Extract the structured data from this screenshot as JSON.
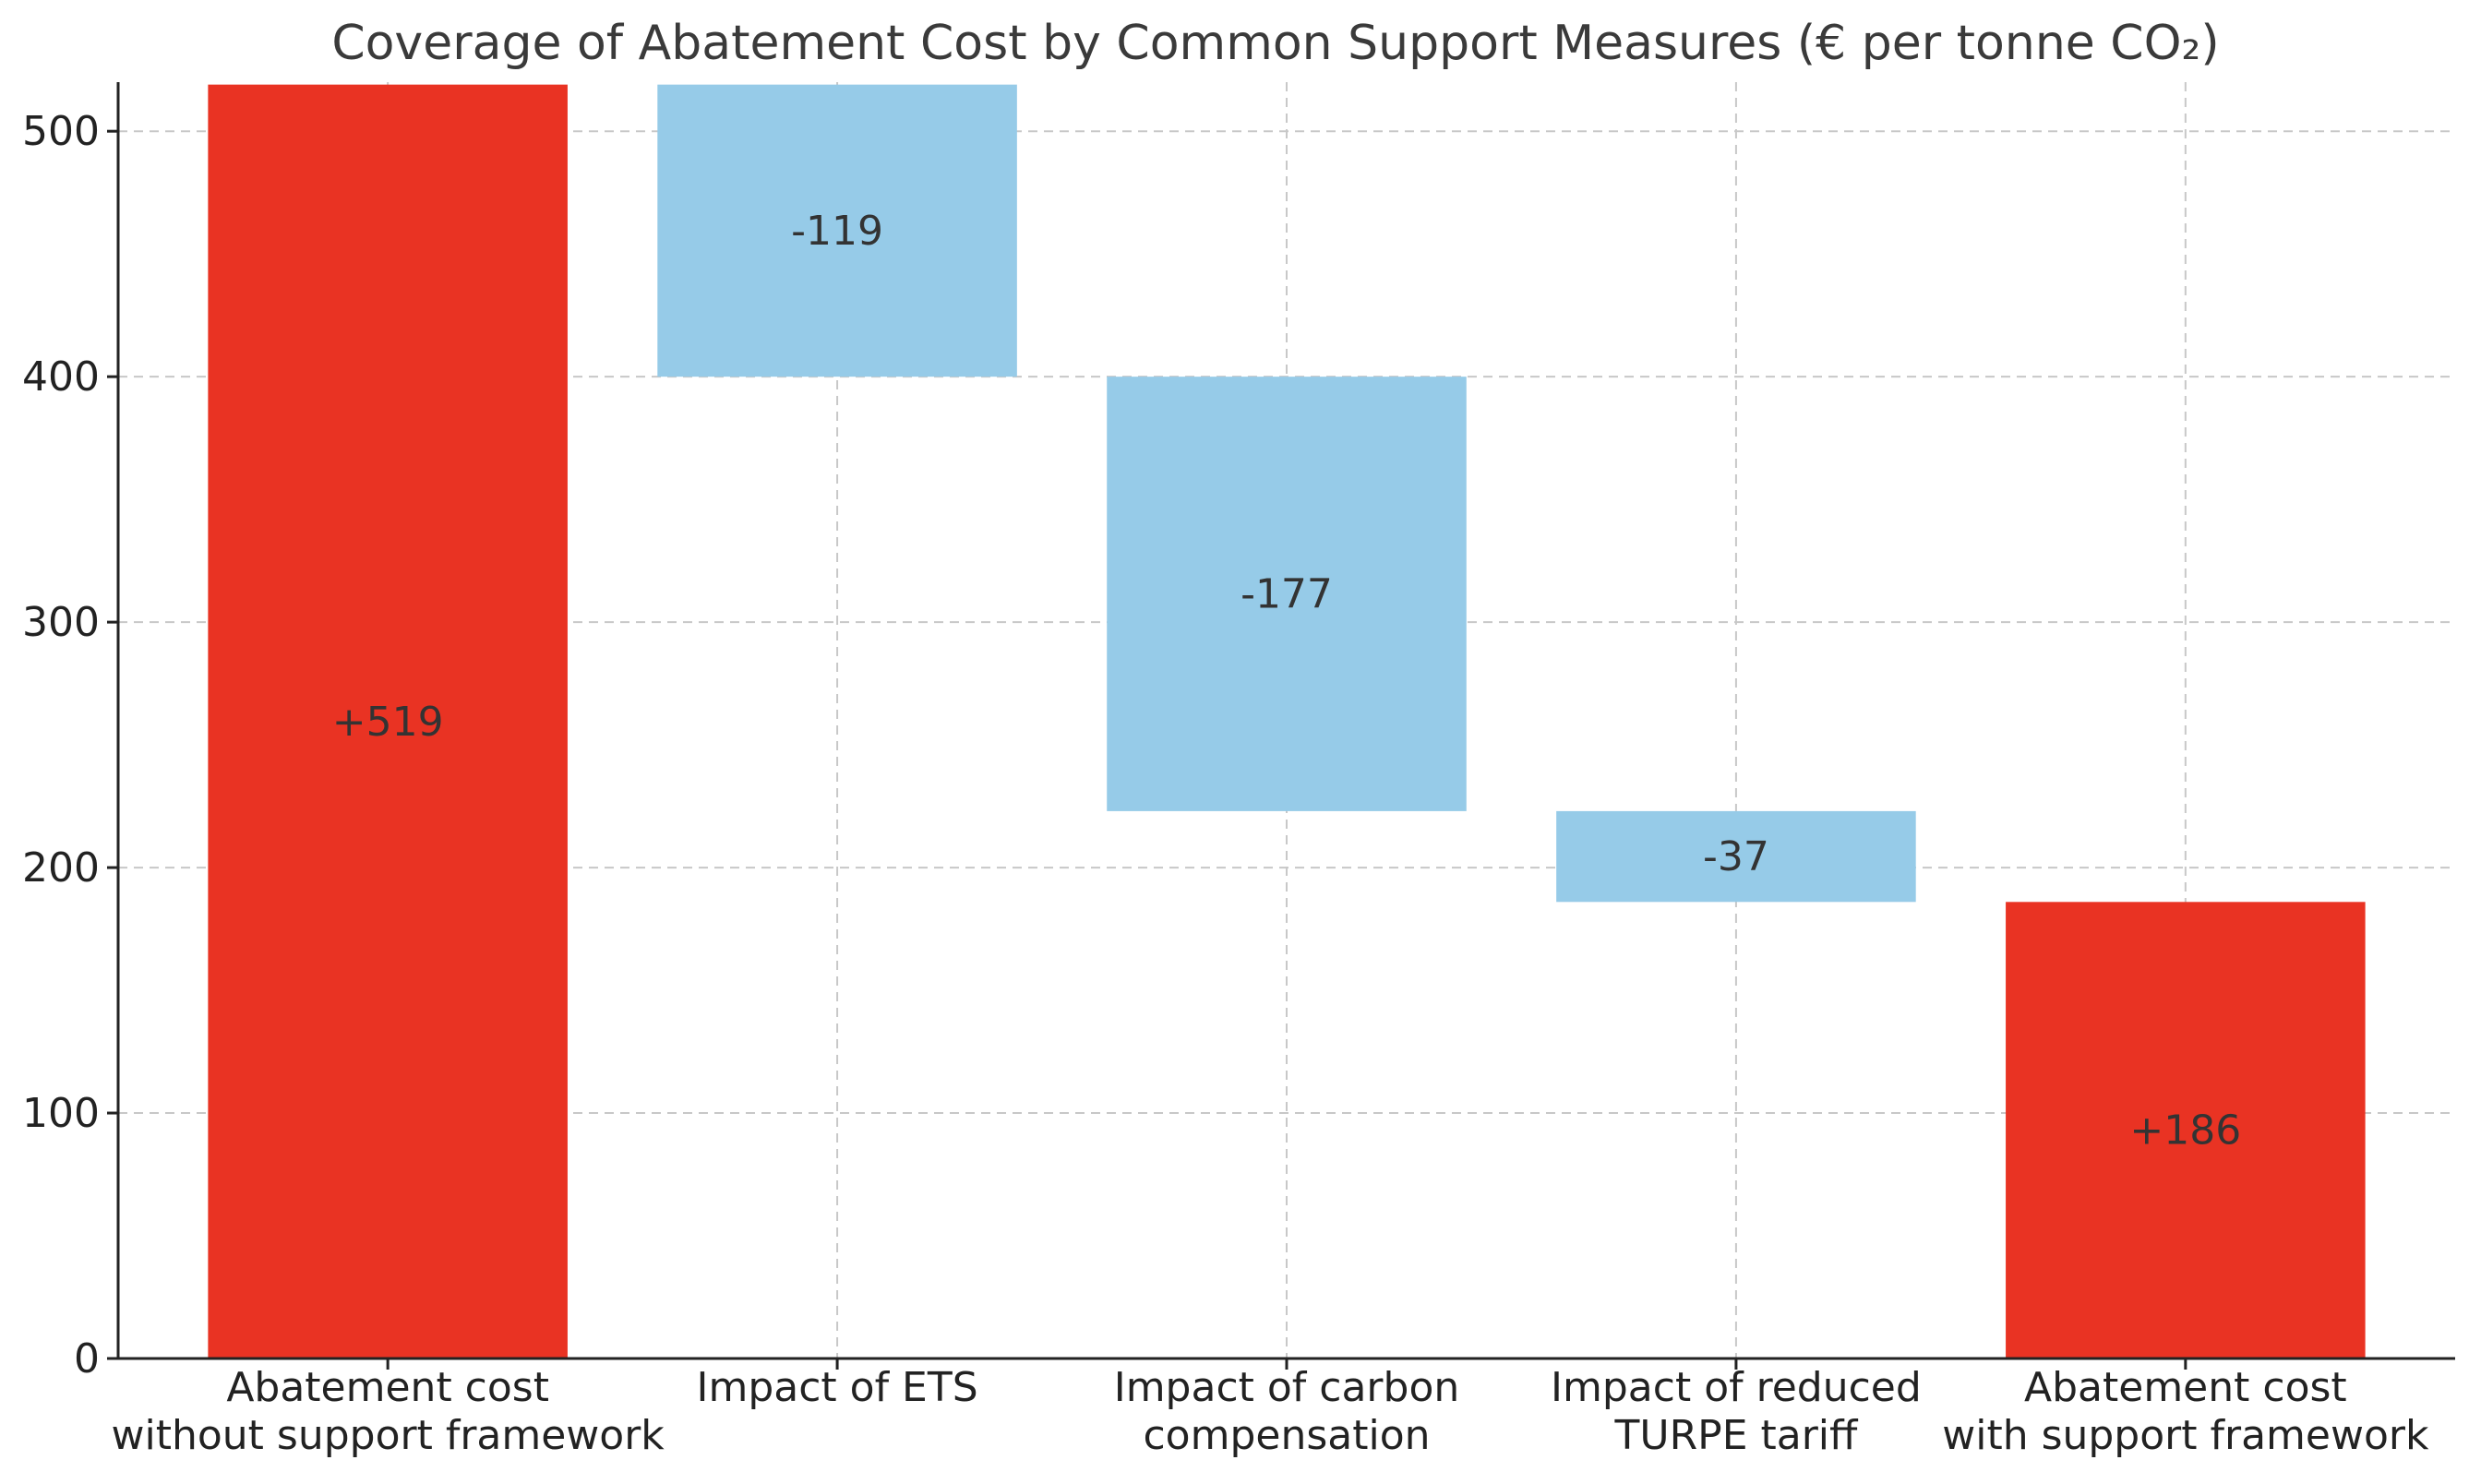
{
  "chart_data": {
    "type": "bar",
    "subtype": "waterfall",
    "title": "Coverage of Abatement Cost by Common Support Measures (€ per tonne CO₂)",
    "xlabel": "",
    "ylabel": "",
    "ylim": [
      0,
      520
    ],
    "yticks": [
      0,
      100,
      200,
      300,
      400,
      500
    ],
    "grid": true,
    "categories": [
      [
        "Abatement cost",
        "without support framework"
      ],
      [
        "Impact of ETS"
      ],
      [
        "Impact of carbon",
        "compensation"
      ],
      [
        "Impact of reduced",
        "TURPE tariff"
      ],
      [
        "Abatement cost",
        "with support framework"
      ]
    ],
    "values": [
      519,
      -119,
      -177,
      -37,
      186
    ],
    "kind": [
      "total",
      "delta",
      "delta",
      "delta",
      "total"
    ],
    "data_labels": [
      "+519",
      "-119",
      "-177",
      "-37",
      "+186"
    ],
    "colors": {
      "total": "#e93323",
      "delta": "#96cbe8"
    }
  }
}
